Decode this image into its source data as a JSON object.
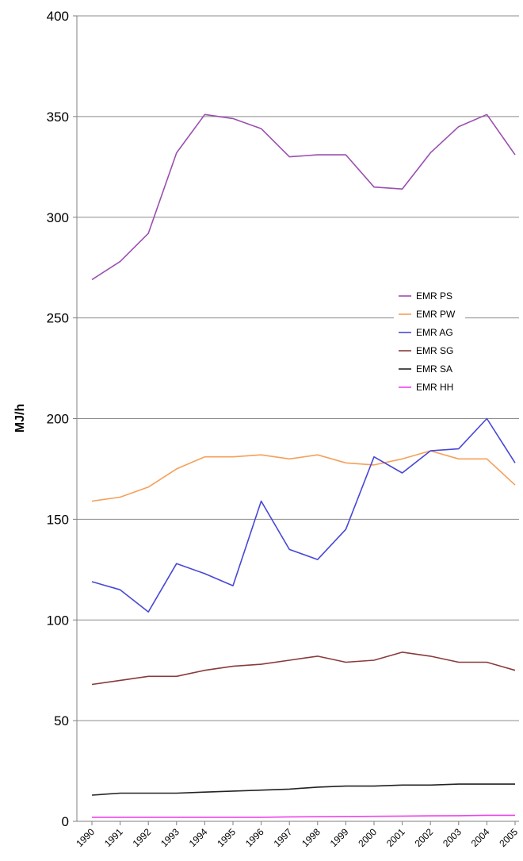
{
  "chart_data": {
    "type": "line",
    "title": "",
    "xlabel": "",
    "ylabel": "MJ/h",
    "ylim": [
      0,
      400
    ],
    "yticks": [
      0,
      50,
      100,
      150,
      200,
      250,
      300,
      350,
      400
    ],
    "grid": true,
    "legend_position": "right",
    "categories": [
      "1990",
      "1991",
      "1992",
      "1993",
      "1994",
      "1995",
      "1996",
      "1997",
      "1998",
      "1999",
      "2000",
      "2001",
      "2002",
      "2003",
      "2004",
      "2005"
    ],
    "series": [
      {
        "name": "EMR PS",
        "color": "#9b4fb0",
        "values": [
          269,
          278,
          292,
          332,
          351,
          349,
          344,
          330,
          331,
          331,
          315,
          314,
          332,
          345,
          351,
          331
        ]
      },
      {
        "name": "EMR PW",
        "color": "#f5a05a",
        "values": [
          159,
          161,
          166,
          175,
          181,
          181,
          182,
          180,
          182,
          178,
          177,
          180,
          184,
          180,
          180,
          167
        ]
      },
      {
        "name": "EMR AG",
        "color": "#4747d6",
        "values": [
          119,
          115,
          104,
          128,
          123,
          117,
          159,
          135,
          130,
          145,
          181,
          173,
          184,
          185,
          200,
          178
        ]
      },
      {
        "name": "EMR SG",
        "color": "#8a3a3a",
        "values": [
          68,
          70,
          72,
          72,
          75,
          77,
          78,
          80,
          82,
          79,
          80,
          84,
          82,
          79,
          79,
          75
        ]
      },
      {
        "name": "EMR SA",
        "color": "#222222",
        "values": [
          13,
          14,
          14,
          14,
          14.5,
          15,
          15.5,
          16,
          17,
          17.5,
          17.5,
          18,
          18,
          18.5,
          18.5,
          18.5
        ]
      },
      {
        "name": "EMR HH",
        "color": "#ee44ee",
        "values": [
          2,
          2,
          2,
          2,
          2,
          2,
          2,
          2.2,
          2.3,
          2.4,
          2.5,
          2.6,
          2.7,
          2.8,
          3,
          3
        ]
      }
    ]
  }
}
